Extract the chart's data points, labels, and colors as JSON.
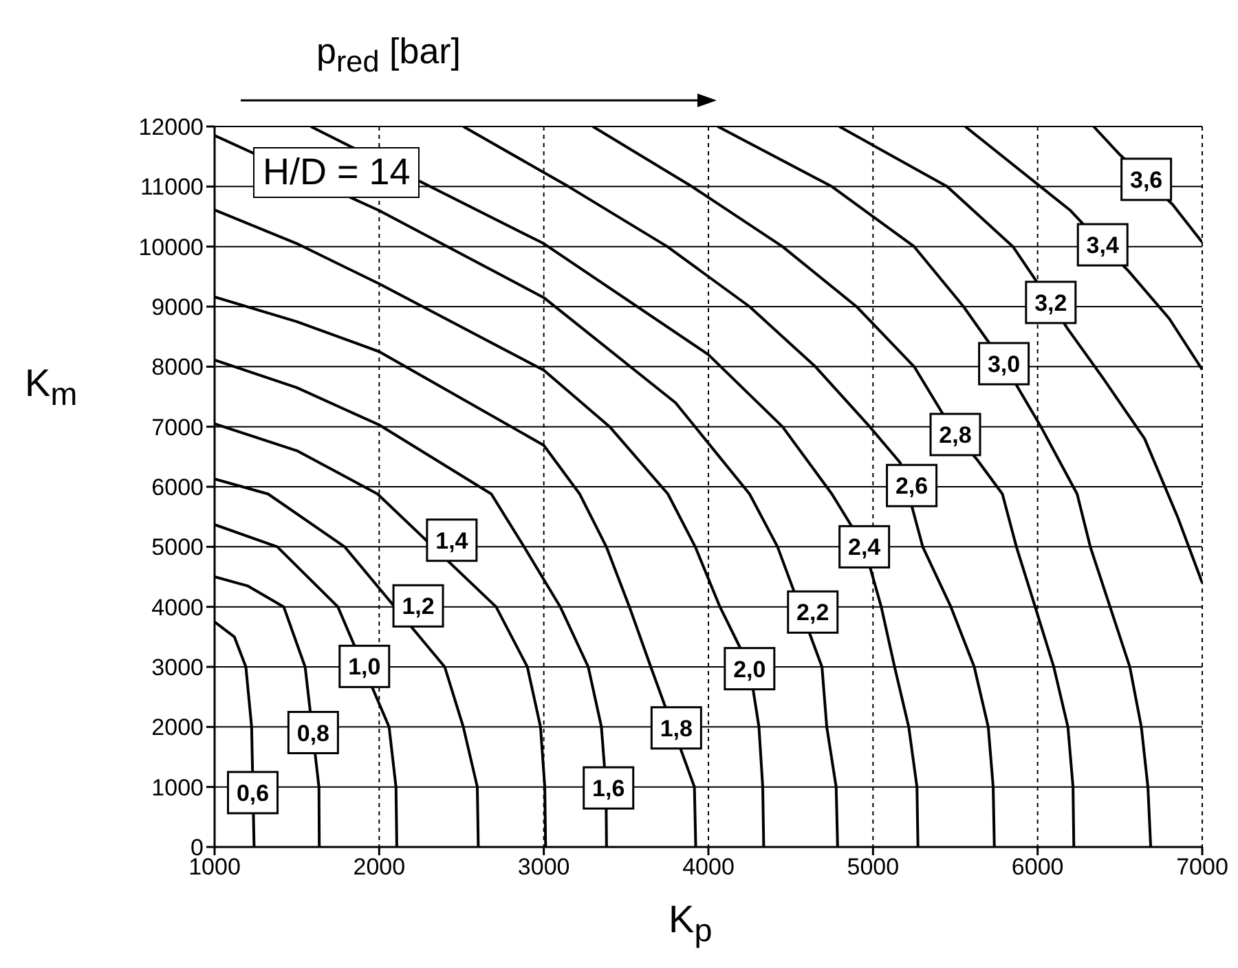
{
  "chart_data": {
    "type": "line",
    "title": "p$_{red}$ [bar]",
    "xlabel": "K$_{p}$",
    "ylabel": "K$_{m}$",
    "xlim": [
      1000,
      7000
    ],
    "xticks": [
      1000,
      2000,
      3000,
      4000,
      5000,
      6000,
      7000
    ],
    "ylim": [
      0,
      12000
    ],
    "yticks": [
      0,
      1000,
      2000,
      3000,
      4000,
      5000,
      6000,
      7000,
      8000,
      9000,
      10000,
      11000,
      12000
    ],
    "grid": true,
    "marker": "none",
    "line_style": "solid",
    "series": [
      {
        "color": "#000000",
        "x": [
          1240,
          1225,
          1190,
          1120,
          1000
        ],
        "values": [
          0,
          2000,
          3000,
          3500,
          3750
        ]
      },
      {
        "color": "#000000",
        "x": [
          1636,
          1634,
          1550,
          1420,
          1200,
          1000
        ],
        "values": [
          0,
          1000,
          3000,
          4000,
          4350,
          4500
        ]
      },
      {
        "color": "#000000",
        "x": [
          2107,
          2102,
          2060,
          1749,
          1381,
          1000
        ],
        "values": [
          0,
          1000,
          2000,
          4000,
          5000,
          5370
        ]
      },
      {
        "color": "#000000",
        "x": [
          2602,
          2596,
          2511,
          2398,
          1790,
          1325,
          1000
        ],
        "values": [
          0,
          1000,
          2000,
          3000,
          5000,
          5880,
          6130
        ]
      },
      {
        "color": "#000000",
        "x": [
          3011,
          3006,
          2980,
          2900,
          2710,
          1990,
          1500,
          1000
        ],
        "values": [
          0,
          1000,
          2000,
          3000,
          4000,
          5880,
          6600,
          7050
        ]
      },
      {
        "color": "#000000",
        "x": [
          3381,
          3378,
          3350,
          3270,
          3100,
          2880,
          2681,
          2000,
          1500,
          1000
        ],
        "values": [
          0,
          1000,
          2000,
          3000,
          4000,
          5000,
          5880,
          7030,
          7650,
          8110
        ]
      },
      {
        "color": "#000000",
        "x": [
          3923,
          3915,
          3650,
          3520,
          3380,
          3218,
          3000,
          2000,
          1500,
          1000
        ],
        "values": [
          0,
          1000,
          3000,
          4000,
          5000,
          5880,
          6690,
          8250,
          8750,
          9160
        ]
      },
      {
        "color": "#000000",
        "x": [
          4336,
          4330,
          4307,
          4250,
          4070,
          3920,
          3754,
          3400,
          3000,
          2000,
          1500,
          1000
        ],
        "values": [
          0,
          1000,
          2000,
          3000,
          4000,
          5000,
          5880,
          7000,
          7940,
          9380,
          10050,
          10610
        ]
      },
      {
        "color": "#000000",
        "x": [
          4785,
          4776,
          4719,
          4690,
          4420,
          4250,
          3800,
          3000,
          2000,
          1000
        ],
        "values": [
          0,
          1000,
          2000,
          3000,
          5000,
          5880,
          7400,
          9150,
          10600,
          11850
        ]
      },
      {
        "color": "#000000",
        "x": [
          5273,
          5267,
          5217,
          5131,
          5050,
          4947,
          4750,
          4450,
          4000,
          3000,
          1584
        ],
        "values": [
          0,
          1000,
          2000,
          3000,
          4000,
          5000,
          5880,
          7000,
          8200,
          10050,
          12000
        ]
      },
      {
        "color": "#000000",
        "x": [
          5737,
          5730,
          5700,
          5615,
          5473,
          5302,
          5165,
          4980,
          4650,
          4250,
          3750,
          3150,
          2511
        ],
        "values": [
          0,
          1000,
          2000,
          3000,
          4000,
          5000,
          6400,
          7000,
          8000,
          9000,
          10000,
          11000,
          12000
        ]
      },
      {
        "color": "#000000",
        "x": [
          6220,
          6215,
          6184,
          6098,
          5985,
          5871,
          5786,
          5633,
          5500,
          5250,
          4900,
          4450,
          3900,
          3298
        ],
        "values": [
          0,
          1000,
          2000,
          3000,
          4000,
          5000,
          5880,
          6450,
          6870,
          8000,
          9000,
          10000,
          11000,
          12000
        ]
      },
      {
        "color": "#000000",
        "x": [
          6687,
          6670,
          6630,
          6560,
          6440,
          6320,
          6240,
          6020,
          5795,
          5550,
          5250,
          4750,
          4057
        ],
        "values": [
          0,
          1000,
          2000,
          3000,
          4000,
          5000,
          5880,
          7000,
          8050,
          9000,
          10000,
          11000,
          12000
        ]
      },
      {
        "color": "#000000",
        "x": [
          7000,
          6850,
          6650,
          6400,
          6180,
          6080,
          5850,
          5450,
          4795
        ],
        "values": [
          4400,
          5500,
          6800,
          7800,
          8640,
          9070,
          10000,
          11000,
          12000
        ]
      },
      {
        "color": "#000000",
        "x": [
          7000,
          6800,
          6550,
          6395,
          6200,
          6017,
          5560
        ],
        "values": [
          7950,
          8800,
          9600,
          10030,
          10600,
          11000,
          12000
        ]
      },
      {
        "color": "#000000",
        "x": [
          7000,
          6820,
          6660,
          6500,
          6340
        ],
        "values": [
          10070,
          10700,
          11120,
          11530,
          12000
        ]
      }
    ],
    "annotations": [
      "H/D = 14",
      {
        "text": "0,6",
        "x": 1232,
        "y": 906
      },
      {
        "text": "0,8",
        "x": 1599,
        "y": 1906
      },
      {
        "text": "1,0",
        "x": 1910,
        "y": 3008
      },
      {
        "text": "1,2",
        "x": 2237,
        "y": 4016
      },
      {
        "text": "1,4",
        "x": 2441,
        "y": 5110
      },
      {
        "text": "1,6",
        "x": 3393,
        "y": 984
      },
      {
        "text": "1,8",
        "x": 3805,
        "y": 1984
      },
      {
        "text": "2,0",
        "x": 4250,
        "y": 2970
      },
      {
        "text": "2,2",
        "x": 4634,
        "y": 3913
      },
      {
        "text": "2,4",
        "x": 4947,
        "y": 5000
      },
      {
        "text": "2,6",
        "x": 5235,
        "y": 6020
      },
      {
        "text": "2,8",
        "x": 5500,
        "y": 6870
      },
      {
        "text": "3,0",
        "x": 5795,
        "y": 8050
      },
      {
        "text": "3,2",
        "x": 6080,
        "y": 9070
      },
      {
        "text": "3,4",
        "x": 6395,
        "y": 10030
      },
      {
        "text": "3,6",
        "x": 6660,
        "y": 11120
      }
    ]
  }
}
